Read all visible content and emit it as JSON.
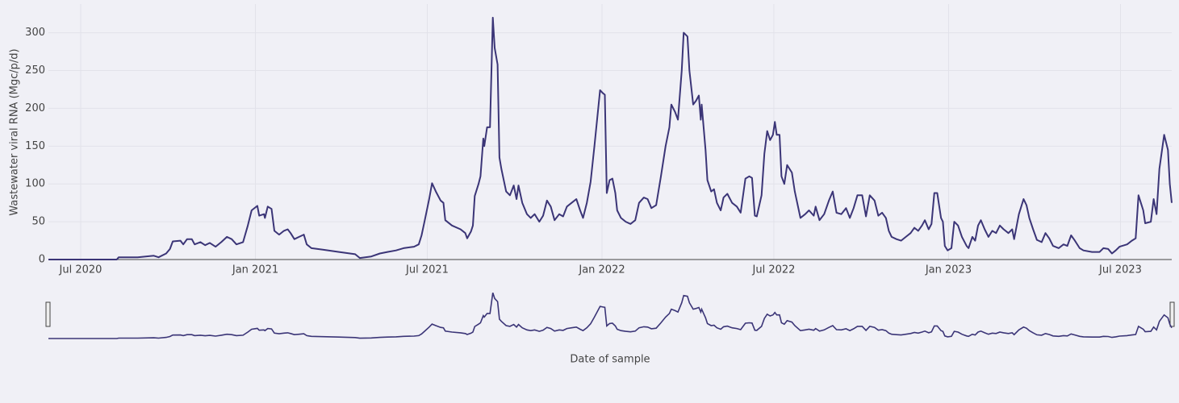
{
  "chart_data": {
    "type": "line",
    "x_label": "Date of sample",
    "y_label": "Wastewater viral RNA (Mgc/p/d)",
    "xlim": [
      "2020-05-28",
      "2023-08-24"
    ],
    "ylim": [
      0,
      338
    ],
    "xticks": [
      {
        "value": "2020-07-01",
        "label": "Jul 2020"
      },
      {
        "value": "2021-01-01",
        "label": "Jan 2021"
      },
      {
        "value": "2021-07-01",
        "label": "Jul 2021"
      },
      {
        "value": "2022-01-01",
        "label": "Jan 2022"
      },
      {
        "value": "2022-07-01",
        "label": "Jul 2022"
      },
      {
        "value": "2023-01-01",
        "label": "Jan 2023"
      },
      {
        "value": "2023-07-01",
        "label": "Jul 2023"
      }
    ],
    "yticks": [
      0,
      50,
      100,
      150,
      200,
      250,
      300
    ],
    "grid": true,
    "range_slider": true,
    "color": "#3b3577",
    "x": [
      "2020-05-28",
      "2020-07-01",
      "2020-08-08",
      "2020-08-10",
      "2020-08-30",
      "2020-09-16",
      "2020-09-21",
      "2020-09-29",
      "2020-10-03",
      "2020-10-06",
      "2020-10-14",
      "2020-10-17",
      "2020-10-21",
      "2020-10-26",
      "2020-10-29",
      "2020-11-04",
      "2020-11-09",
      "2020-11-14",
      "2020-11-20",
      "2020-11-26",
      "2020-12-02",
      "2020-12-07",
      "2020-12-12",
      "2020-12-19",
      "2020-12-24",
      "2020-12-28",
      "2021-01-03",
      "2021-01-05",
      "2021-01-10",
      "2021-01-11",
      "2021-01-14",
      "2021-01-18",
      "2021-01-21",
      "2021-01-26",
      "2021-01-31",
      "2021-02-04",
      "2021-02-07",
      "2021-02-11",
      "2021-02-16",
      "2021-02-21",
      "2021-02-24",
      "2021-03-01",
      "2021-03-13",
      "2021-03-30",
      "2021-04-16",
      "2021-04-21",
      "2021-05-03",
      "2021-05-12",
      "2021-05-20",
      "2021-05-29",
      "2021-06-06",
      "2021-06-17",
      "2021-06-22",
      "2021-06-25",
      "2021-06-28",
      "2021-07-03",
      "2021-07-06",
      "2021-07-10",
      "2021-07-15",
      "2021-07-18",
      "2021-07-20",
      "2021-07-27",
      "2021-08-05",
      "2021-08-10",
      "2021-08-12",
      "2021-08-16",
      "2021-08-18",
      "2021-08-20",
      "2021-08-24",
      "2021-08-26",
      "2021-08-29",
      "2021-08-30",
      "2021-09-02",
      "2021-09-05",
      "2021-09-08",
      "2021-09-10",
      "2021-09-13",
      "2021-09-15",
      "2021-09-17",
      "2021-09-22",
      "2021-09-26",
      "2021-09-30",
      "2021-10-03",
      "2021-10-05",
      "2021-10-09",
      "2021-10-14",
      "2021-10-18",
      "2021-10-22",
      "2021-10-27",
      "2021-10-31",
      "2021-11-04",
      "2021-11-08",
      "2021-11-12",
      "2021-11-17",
      "2021-11-21",
      "2021-11-25",
      "2021-11-30",
      "2021-12-05",
      "2021-12-09",
      "2021-12-12",
      "2021-12-16",
      "2021-12-20",
      "2021-12-24",
      "2021-12-30",
      "2022-01-02",
      "2022-01-04",
      "2022-01-06",
      "2022-01-09",
      "2022-01-12",
      "2022-01-15",
      "2022-01-17",
      "2022-01-21",
      "2022-01-26",
      "2022-01-31",
      "2022-02-05",
      "2022-02-09",
      "2022-02-14",
      "2022-02-18",
      "2022-02-22",
      "2022-02-27",
      "2022-03-04",
      "2022-03-09",
      "2022-03-13",
      "2022-03-15",
      "2022-03-19",
      "2022-03-22",
      "2022-03-26",
      "2022-03-28",
      "2022-04-01",
      "2022-04-03",
      "2022-04-07",
      "2022-04-10",
      "2022-04-13",
      "2022-04-15",
      "2022-04-16",
      "2022-04-20",
      "2022-04-22",
      "2022-04-26",
      "2022-04-29",
      "2022-05-02",
      "2022-05-06",
      "2022-05-09",
      "2022-05-13",
      "2022-05-18",
      "2022-05-23",
      "2022-05-27",
      "2022-06-01",
      "2022-06-05",
      "2022-06-08",
      "2022-06-11",
      "2022-06-13",
      "2022-06-18",
      "2022-06-21",
      "2022-06-24",
      "2022-06-27",
      "2022-06-30",
      "2022-07-02",
      "2022-07-04",
      "2022-07-07",
      "2022-07-09",
      "2022-07-12",
      "2022-07-15",
      "2022-07-20",
      "2022-07-23",
      "2022-07-29",
      "2022-08-03",
      "2022-08-07",
      "2022-08-12",
      "2022-08-14",
      "2022-08-18",
      "2022-08-23",
      "2022-08-28",
      "2022-09-01",
      "2022-09-05",
      "2022-09-10",
      "2022-09-15",
      "2022-09-19",
      "2022-09-23",
      "2022-09-27",
      "2022-10-02",
      "2022-10-06",
      "2022-10-10",
      "2022-10-15",
      "2022-10-19",
      "2022-10-23",
      "2022-10-27",
      "2022-10-30",
      "2022-11-02",
      "2022-11-07",
      "2022-11-12",
      "2022-11-17",
      "2022-11-22",
      "2022-11-26",
      "2022-11-30",
      "2022-12-04",
      "2022-12-07",
      "2022-12-11",
      "2022-12-14",
      "2022-12-17",
      "2022-12-20",
      "2022-12-24",
      "2022-12-26",
      "2022-12-28",
      "2022-12-31",
      "2023-01-04",
      "2023-01-07",
      "2023-01-11",
      "2023-01-15",
      "2023-01-20",
      "2023-01-22",
      "2023-01-26",
      "2023-01-29",
      "2023-02-01",
      "2023-02-04",
      "2023-02-08",
      "2023-02-12",
      "2023-02-16",
      "2023-02-20",
      "2023-02-24",
      "2023-02-28",
      "2023-03-05",
      "2023-03-09",
      "2023-03-11",
      "2023-03-16",
      "2023-03-21",
      "2023-03-24",
      "2023-03-27",
      "2023-03-31",
      "2023-04-04",
      "2023-04-09",
      "2023-04-13",
      "2023-04-17",
      "2023-04-21",
      "2023-04-27",
      "2023-05-02",
      "2023-05-06",
      "2023-05-10",
      "2023-05-14",
      "2023-05-19",
      "2023-05-23",
      "2023-06-01",
      "2023-06-09",
      "2023-06-13",
      "2023-06-18",
      "2023-06-22",
      "2023-06-26",
      "2023-06-30",
      "2023-07-08",
      "2023-07-13",
      "2023-07-17",
      "2023-07-20",
      "2023-07-25",
      "2023-07-27",
      "2023-08-02",
      "2023-08-05",
      "2023-08-08",
      "2023-08-11",
      "2023-08-16",
      "2023-08-20",
      "2023-08-22",
      "2023-08-24"
    ],
    "values": [
      0,
      0,
      0,
      3,
      3,
      5,
      3,
      8,
      14,
      24,
      25,
      20,
      27,
      27,
      20,
      23,
      19,
      22,
      17,
      23,
      30,
      27,
      20,
      23,
      45,
      65,
      71,
      58,
      60,
      55,
      70,
      67,
      38,
      33,
      38,
      40,
      35,
      27,
      30,
      33,
      20,
      15,
      13,
      10,
      7,
      2,
      4,
      8,
      10,
      12,
      15,
      17,
      20,
      32,
      50,
      80,
      101,
      90,
      78,
      75,
      52,
      45,
      40,
      35,
      28,
      37,
      45,
      84,
      100,
      110,
      160,
      150,
      175,
      175,
      320,
      280,
      258,
      135,
      120,
      90,
      85,
      98,
      80,
      98,
      75,
      60,
      55,
      60,
      50,
      58,
      78,
      70,
      52,
      60,
      57,
      70,
      75,
      80,
      65,
      55,
      75,
      103,
      150,
      224,
      220,
      218,
      88,
      105,
      107,
      88,
      65,
      55,
      50,
      47,
      52,
      75,
      82,
      80,
      68,
      72,
      110,
      150,
      175,
      205,
      195,
      185,
      250,
      300,
      295,
      250,
      205,
      210,
      217,
      185,
      205,
      145,
      105,
      90,
      93,
      75,
      65,
      82,
      87,
      75,
      70,
      62,
      107,
      110,
      108,
      58,
      57,
      85,
      140,
      170,
      158,
      165,
      182,
      165,
      165,
      110,
      100,
      125,
      115,
      90,
      55,
      60,
      65,
      58,
      70,
      52,
      60,
      78,
      90,
      62,
      60,
      68,
      55,
      68,
      85,
      85,
      57,
      85,
      78,
      58,
      62,
      55,
      38,
      30,
      27,
      25,
      30,
      35,
      42,
      38,
      45,
      52,
      40,
      47,
      88,
      88,
      55,
      50,
      18,
      12,
      15,
      50,
      45,
      30,
      18,
      15,
      30,
      25,
      45,
      52,
      40,
      30,
      38,
      35,
      45,
      40,
      35,
      40,
      27,
      60,
      80,
      72,
      55,
      40,
      26,
      23,
      35,
      28,
      18,
      15,
      20,
      18,
      32,
      25,
      15,
      12,
      10,
      10,
      15,
      14,
      8,
      12,
      17,
      20,
      25,
      28,
      85,
      65,
      48,
      50,
      80,
      60,
      120,
      165,
      145,
      100,
      75
    ]
  }
}
